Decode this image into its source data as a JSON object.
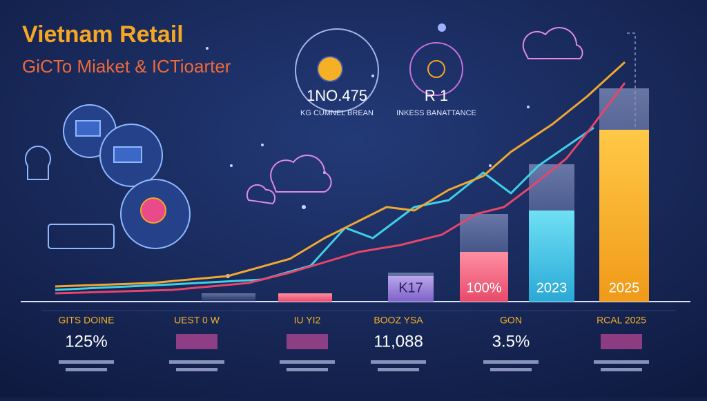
{
  "header": {
    "title": "Vietnam Retail",
    "subtitle": "GiCTo Miaket & ICTioarter"
  },
  "callouts": [
    {
      "value": "1NO.475",
      "label": "KG CUMNEL BREAN"
    },
    {
      "value": "R 1",
      "label": "INKESS BANATTANCE"
    }
  ],
  "bars": [
    "K17",
    "100%",
    "2023",
    "2025"
  ],
  "stats": [
    {
      "heading": "GITS DOINE",
      "value": "125%"
    },
    {
      "heading": "UEST 0 W"
    },
    {
      "heading": "IU YI2"
    },
    {
      "heading": "BOOZ YSA",
      "value": "11,088"
    },
    {
      "heading": "GON",
      "value": "3.5%"
    },
    {
      "heading": "RCAL 2025"
    }
  ]
}
